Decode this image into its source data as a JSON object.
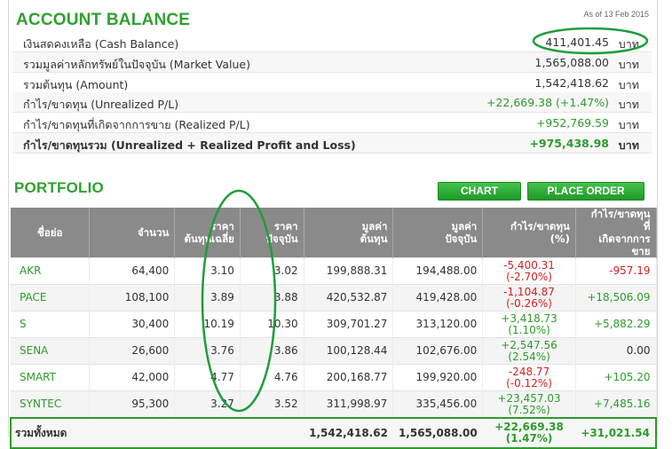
{
  "account": {
    "title": "ACCOUNT BALANCE",
    "as_of": "As of 13 Feb 2015",
    "unit": "บาท",
    "rows": [
      {
        "label": "เงินสดคงเหลือ (Cash Balance)",
        "value": "411,401.45",
        "class": ""
      },
      {
        "label": "รวมมูลค่าหลักทรัพย์ในปัจจุบัน (Market Value)",
        "value": "1,565,088.00",
        "class": ""
      },
      {
        "label": "รวมต้นทุน (Amount)",
        "value": "1,542,418.62",
        "class": ""
      },
      {
        "label": "กำไร/ขาดทุน (Unrealized P/L)",
        "value": "+22,669.38 (+1.47%)",
        "class": "pos"
      },
      {
        "label": "กำไร/ขาดทุนที่เกิดจากการขาย (Realized P/L)",
        "value": "+952,769.59",
        "class": "pos"
      },
      {
        "label": "กำไร/ขาดทุนรวม (Unrealized + Realized Profit and Loss)",
        "value": "+975,438.98",
        "class": "pos"
      }
    ]
  },
  "portfolio": {
    "title": "PORTFOLIO",
    "chart_button": "CHART",
    "place_order_button": "PLACE ORDER",
    "headers": {
      "symbol": "ชื่อย่อ",
      "volume": "จำนวน",
      "avg_cost_1": "ราคา",
      "avg_cost_2": "ต้นทุนเฉลี่ย",
      "price_1": "ราคา",
      "price_2": "ปัจจุบัน",
      "cost_value_1": "มูลค่า",
      "cost_value_2": "ต้นทุน",
      "market_value_1": "มูลค่า",
      "market_value_2": "ปัจจุบัน",
      "unrealized": "กำไร/ขาดทุน (%)",
      "realized_1": "กำไร/ขาดทุน ที่",
      "realized_2": "เกิดจากการขาย"
    },
    "rows": [
      {
        "symbol": "AKR",
        "volume": "64,400",
        "avg_cost": "3.10",
        "price": "3.02",
        "cost_value": "199,888.31",
        "market_value": "194,488.00",
        "pl_amount": "-5,400.31",
        "pl_pct": "(-2.70%)",
        "pl_class": "neg",
        "realized": "-957.19",
        "realized_class": "neg"
      },
      {
        "symbol": "PACE",
        "volume": "108,100",
        "avg_cost": "3.89",
        "price": "3.88",
        "cost_value": "420,532.87",
        "market_value": "419,428.00",
        "pl_amount": "-1,104.87",
        "pl_pct": "(-0.26%)",
        "pl_class": "neg",
        "realized": "+18,506.09",
        "realized_class": "pos"
      },
      {
        "symbol": "S",
        "volume": "30,400",
        "avg_cost": "10.19",
        "price": "10.30",
        "cost_value": "309,701.27",
        "market_value": "313,120.00",
        "pl_amount": "+3,418.73",
        "pl_pct": "(1.10%)",
        "pl_class": "pos",
        "realized": "+5,882.29",
        "realized_class": "pos"
      },
      {
        "symbol": "SENA",
        "volume": "26,600",
        "avg_cost": "3.76",
        "price": "3.86",
        "cost_value": "100,128.44",
        "market_value": "102,676.00",
        "pl_amount": "+2,547.56",
        "pl_pct": "(2.54%)",
        "pl_class": "pos",
        "realized": "0.00",
        "realized_class": ""
      },
      {
        "symbol": "SMART",
        "volume": "42,000",
        "avg_cost": "4.77",
        "price": "4.76",
        "cost_value": "200,168.77",
        "market_value": "199,920.00",
        "pl_amount": "-248.77",
        "pl_pct": "(-0.12%)",
        "pl_class": "neg",
        "realized": "+105.20",
        "realized_class": "pos"
      },
      {
        "symbol": "SYNTEC",
        "volume": "95,300",
        "avg_cost": "3.27",
        "price": "3.52",
        "cost_value": "311,998.97",
        "market_value": "335,456.00",
        "pl_amount": "+23,457.03",
        "pl_pct": "(7.52%)",
        "pl_class": "pos",
        "realized": "+7,485.16",
        "realized_class": "pos"
      }
    ],
    "total": {
      "label": "รวมทั้งหมด",
      "cost_value": "1,542,418.62",
      "market_value": "1,565,088.00",
      "pl_amount": "+22,669.38",
      "pl_pct": "(1.47%)",
      "realized": "+31,021.54"
    }
  },
  "colors": {
    "accent_green": "#2fa12f",
    "header_gray": "#8a8a8a",
    "negative_red": "#d42020",
    "annotation_green": "#1e9e3a"
  }
}
